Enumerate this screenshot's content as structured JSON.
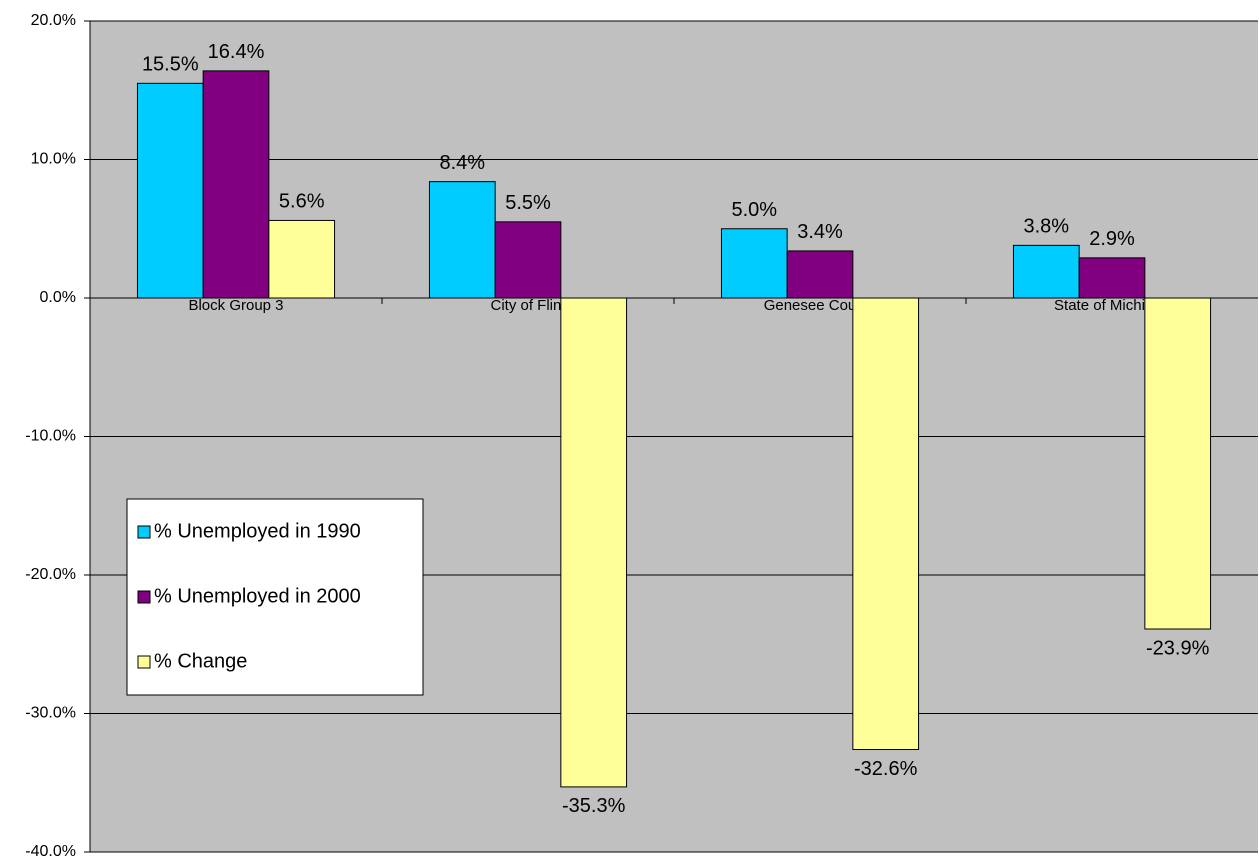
{
  "chart_data": {
    "type": "bar",
    "categories": [
      "Block Group 3",
      "City of Flint",
      "Genesee County",
      "State of Michigan"
    ],
    "series": [
      {
        "name": "% Unemployed in 1990",
        "color": "#00ccff",
        "values": [
          15.5,
          8.4,
          5.0,
          3.8
        ],
        "value_labels": [
          "15.5%",
          "8.4%",
          "5.0%",
          "3.8%"
        ]
      },
      {
        "name": "% Unemployed in 2000",
        "color": "#800080",
        "values": [
          16.4,
          5.5,
          3.4,
          2.9
        ],
        "value_labels": [
          "16.4%",
          "5.5%",
          "3.4%",
          "2.9%"
        ]
      },
      {
        "name": "% Change",
        "color": "#ffff99",
        "values": [
          5.6,
          -35.3,
          -32.6,
          -23.9
        ],
        "value_labels": [
          "5.6%",
          "-35.3%",
          "-32.6%",
          "-23.9%"
        ]
      }
    ],
    "ylim": [
      -40,
      20
    ],
    "yticks": [
      {
        "value": -40,
        "label": "-40.0%"
      },
      {
        "value": -30,
        "label": "-30.0%"
      },
      {
        "value": -20,
        "label": "-20.0%"
      },
      {
        "value": -10,
        "label": "-10.0%"
      },
      {
        "value": 0,
        "label": "0.0%"
      },
      {
        "value": 10,
        "label": "10.0%"
      },
      {
        "value": 20,
        "label": "20.0%"
      }
    ],
    "grid": true,
    "legend": "left",
    "background": "#c0c0c0"
  }
}
